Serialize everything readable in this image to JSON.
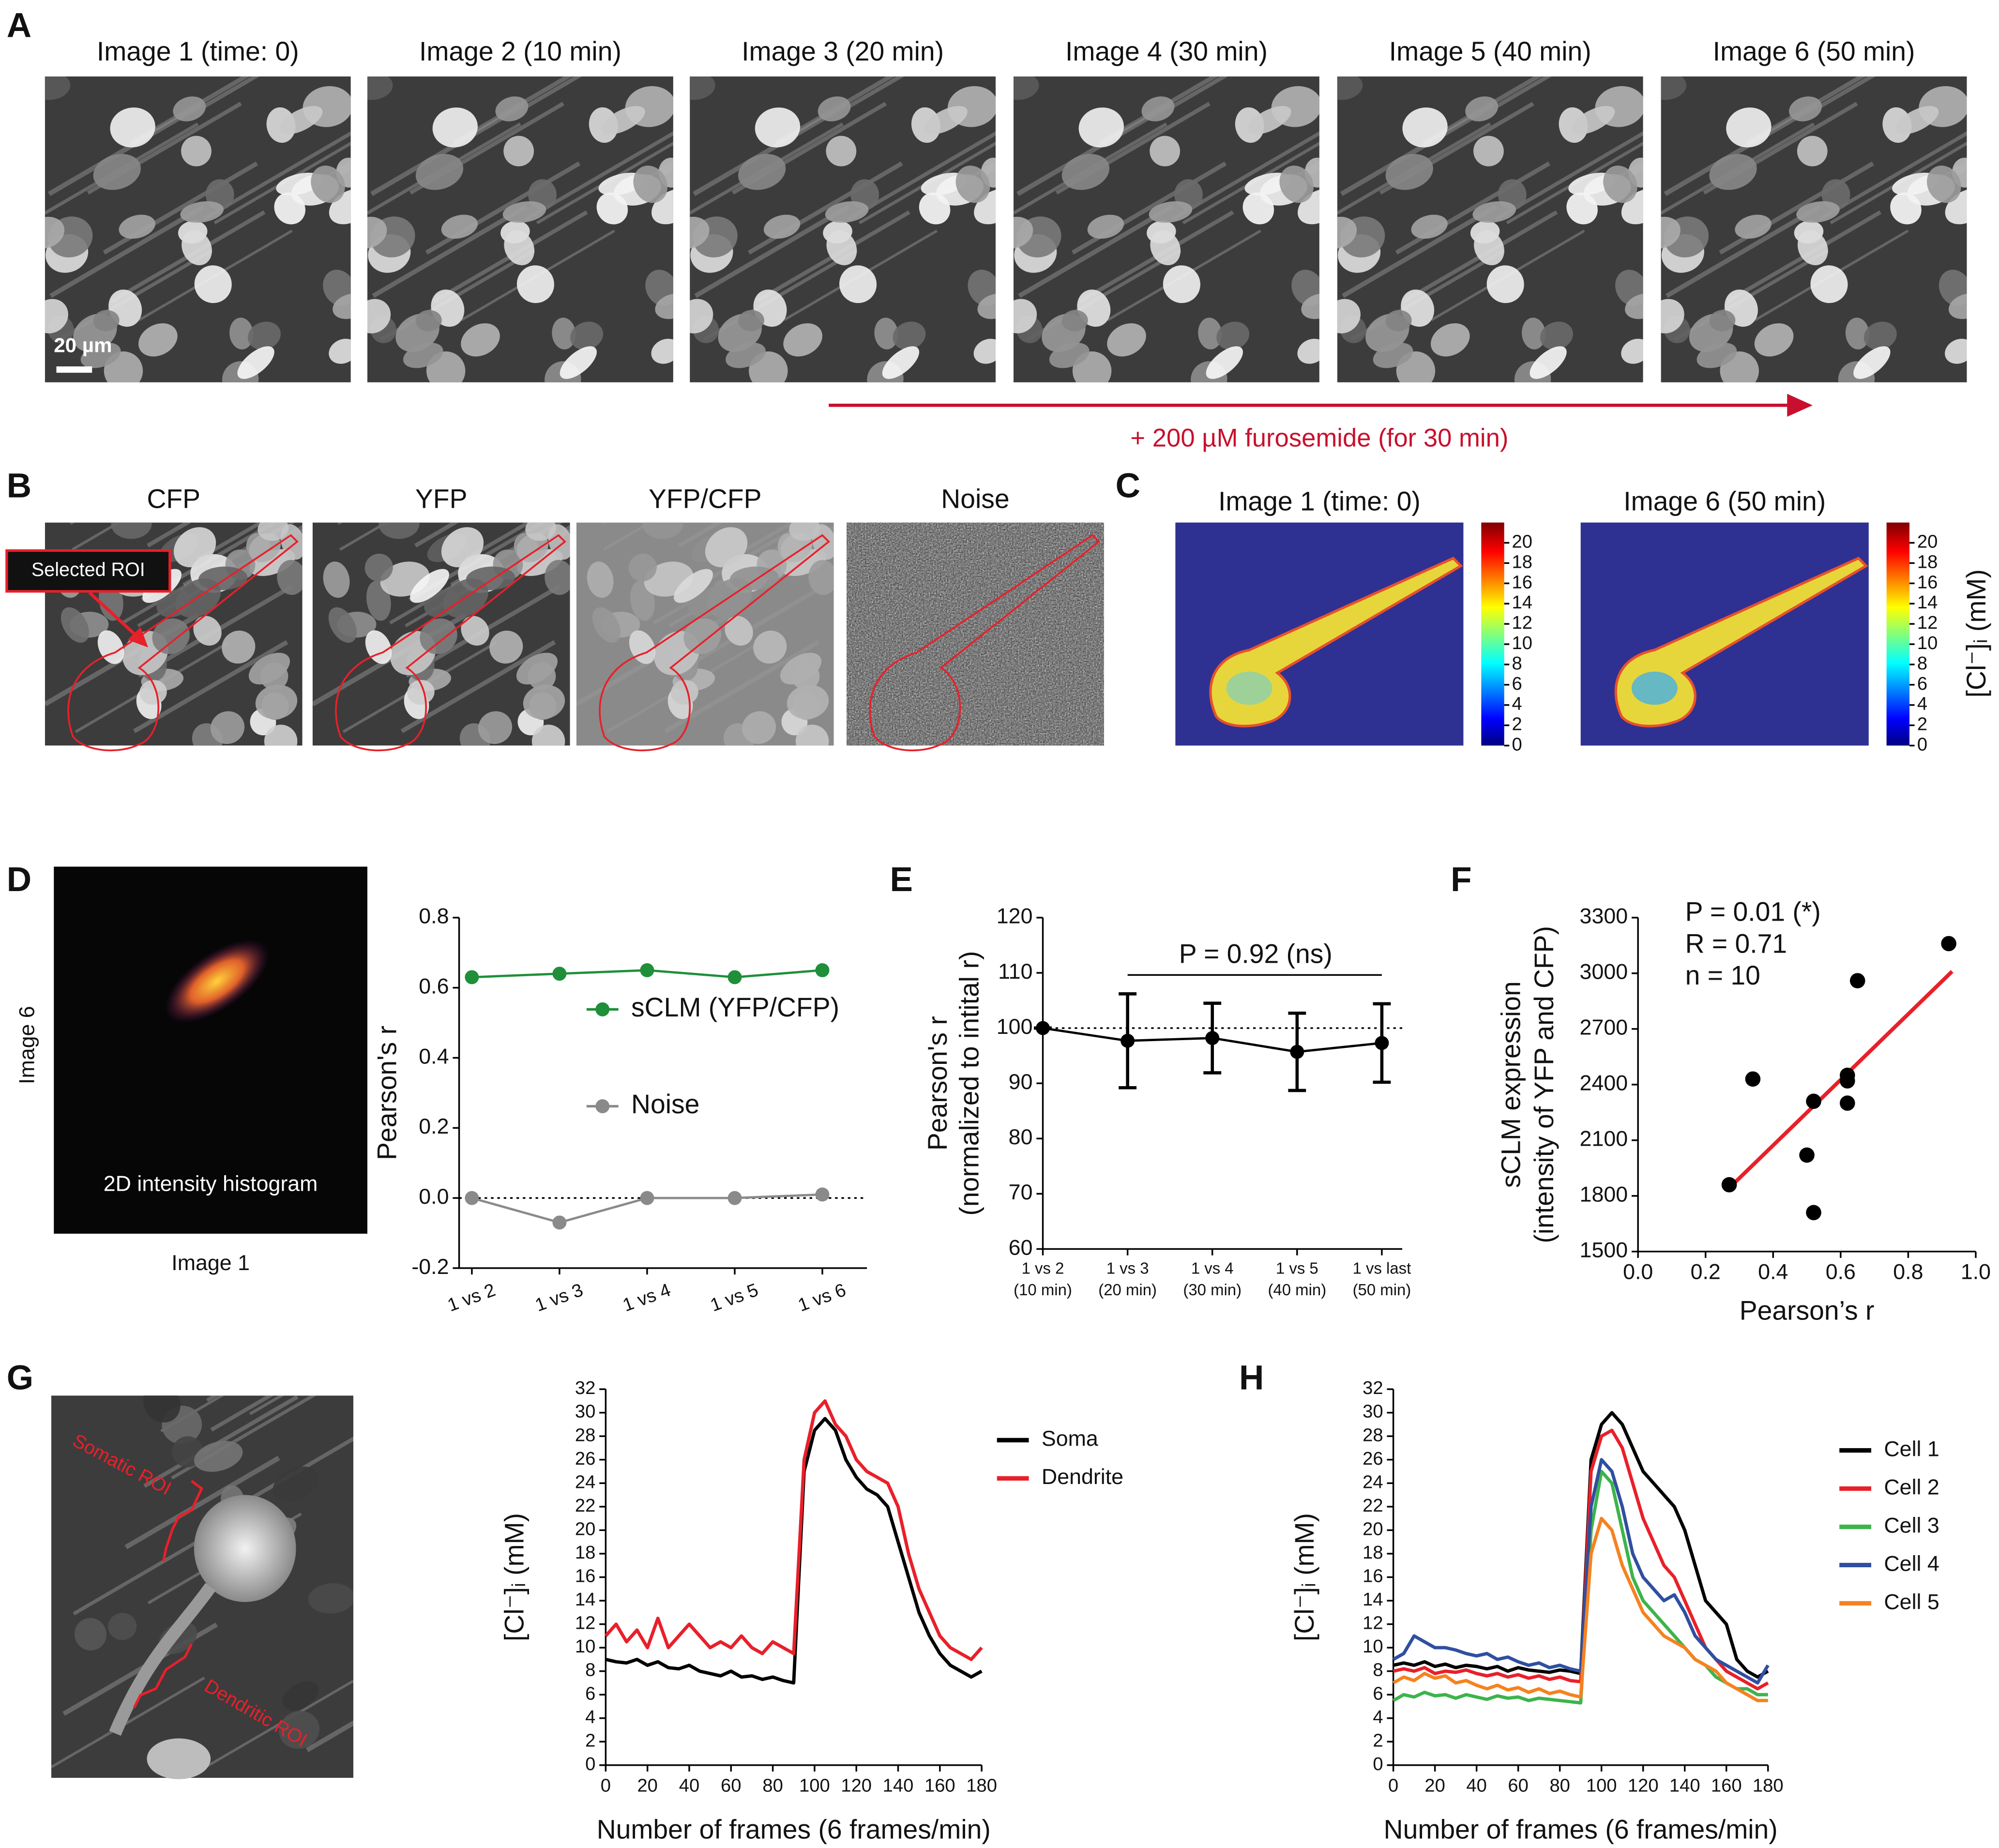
{
  "panels": [
    "A",
    "B",
    "C",
    "D",
    "E",
    "F",
    "G",
    "H"
  ],
  "panel_a": {
    "titles": [
      "Image 1 (time: 0)",
      "Image 2 (10 min)",
      "Image 3 (20 min)",
      "Image 4 (30 min)",
      "Image 5 (40 min)",
      "Image 6 (50 min)"
    ],
    "scale_bar": "20 µm",
    "treatment": "+ 200 µM furosemide (for 30 min)"
  },
  "panel_b": {
    "titles": [
      "CFP",
      "YFP",
      "YFP/CFP",
      "Noise"
    ],
    "roi_label": "Selected ROI"
  },
  "panel_c": {
    "titles": [
      "Image 1 (time: 0)",
      "Image 6 (50 min)"
    ],
    "colorbar": {
      "lim": [
        0,
        22
      ],
      "ticks": [
        0,
        2,
        4,
        6,
        8,
        10,
        12,
        14,
        16,
        18,
        20
      ],
      "label": "[Cl⁻]ᵢ (mM)"
    }
  },
  "panel_d": {
    "y_label": "Image 6",
    "x_label": "Image 1",
    "caption": "2D intensity histogram"
  },
  "panel_g": {
    "roi_labels": [
      "Somatic ROI",
      "Dendritic ROI"
    ]
  },
  "chart_data": [
    {
      "type": "line",
      "categories": [
        "1 vs 2",
        "1 vs 3",
        "1 vs 4",
        "1 vs 5",
        "1 vs 6"
      ],
      "series": [
        {
          "name": "sCLM (YFP/CFP)",
          "color": "#1f8f3a",
          "values": [
            0.63,
            0.64,
            0.65,
            0.63,
            0.65
          ]
        },
        {
          "name": "Noise",
          "color": "#8a8a8a",
          "values": [
            0,
            -0.07,
            0,
            0,
            0.01
          ]
        }
      ],
      "ylim": [
        -0.2,
        0.8
      ],
      "yticks": [
        -0.2,
        {
          "value": 0,
          "label": "0.0"
        },
        0.2,
        0.4,
        0.6,
        0.8
      ],
      "y_label": "Pearson's r",
      "hline": 0,
      "markers": true
    },
    {
      "type": "line",
      "categories": [
        [
          "1 vs 2",
          "(10 min)"
        ],
        [
          "1 vs 3",
          "(20 min)"
        ],
        [
          "1 vs 4",
          "(30 min)"
        ],
        [
          "1 vs 5",
          "(40 min)"
        ],
        [
          "1 vs last",
          "(50 min)"
        ]
      ],
      "values": [
        100,
        97.7,
        98.2,
        95.7,
        97.3
      ],
      "errors": [
        0,
        8.5,
        6.3,
        7,
        7.1
      ],
      "color": "#000000",
      "ylim": [
        60,
        120
      ],
      "yticks": [
        60,
        70,
        80,
        90,
        100,
        110,
        120
      ],
      "y_label": [
        "Pearson's r",
        "(normalized to intital r)"
      ],
      "hline": 100,
      "markers": true,
      "annotations": [
        "P = 0.92 (ns)"
      ]
    },
    {
      "type": "scatter",
      "x": [
        0.27,
        0.34,
        0.5,
        0.52,
        0.52,
        0.62,
        0.62,
        0.62,
        0.65,
        0.92
      ],
      "values": [
        1860,
        2430,
        2020,
        2310,
        1710,
        2450,
        2420,
        2300,
        2960,
        3160
      ],
      "color": "#000000",
      "xlim": [
        0,
        1
      ],
      "xticks": [
        {
          "value": 0,
          "label": "0.0"
        },
        0.2,
        0.4,
        0.6,
        0.8,
        {
          "value": 1,
          "label": "1.0"
        }
      ],
      "ylim": [
        1500,
        3300
      ],
      "yticks": [
        1500,
        1800,
        2100,
        2400,
        2700,
        3000,
        3300
      ],
      "x_label": "Pearson’s r",
      "y_label": [
        "sCLM expression",
        "(intensity of YFP and CFP)"
      ],
      "annotations": [
        "P = 0.01 (*)",
        "R = 0.71",
        "n = 10"
      ],
      "fit": {
        "x": [
          0.28,
          0.93
        ],
        "y": [
          1860,
          3010
        ],
        "color": "#e8202a"
      }
    },
    {
      "type": "line",
      "x": [
        0,
        5,
        10,
        15,
        20,
        25,
        30,
        35,
        40,
        45,
        50,
        55,
        60,
        65,
        70,
        75,
        80,
        85,
        90,
        95,
        100,
        105,
        110,
        115,
        120,
        125,
        130,
        135,
        140,
        145,
        150,
        155,
        160,
        165,
        170,
        175,
        180
      ],
      "series": [
        {
          "name": "Soma",
          "color": "#000000",
          "values": [
            9,
            8.8,
            8.7,
            9,
            8.5,
            8.8,
            8.3,
            8.2,
            8.5,
            8,
            7.8,
            7.6,
            8,
            7.5,
            7.6,
            7.3,
            7.5,
            7.2,
            7,
            25,
            28.5,
            29.5,
            28.5,
            26,
            24.5,
            23.5,
            23,
            22,
            19,
            16,
            13,
            11,
            9.5,
            8.5,
            8,
            7.5,
            8
          ]
        },
        {
          "name": "Dendrite",
          "color": "#e8202a",
          "values": [
            11,
            12,
            10.5,
            11.5,
            10,
            12.5,
            10,
            11,
            12,
            11,
            10,
            10.5,
            10,
            11,
            10,
            9.5,
            10.5,
            10,
            9.5,
            26,
            30,
            31,
            29,
            28,
            26,
            25,
            24.5,
            24,
            22,
            18,
            15,
            13,
            11,
            10,
            9.5,
            9,
            10
          ]
        }
      ],
      "xlim": [
        0,
        180
      ],
      "xticks": [
        0,
        20,
        40,
        60,
        80,
        100,
        120,
        140,
        160,
        180
      ],
      "ylim": [
        0,
        32
      ],
      "yticks": [
        0,
        2,
        4,
        6,
        8,
        10,
        12,
        14,
        16,
        18,
        20,
        22,
        24,
        26,
        28,
        30,
        32
      ],
      "x_label": "Number of frames (6 frames/min)",
      "y_label": "[Cl⁻]ᵢ (mM)"
    },
    {
      "type": "line",
      "x": [
        0,
        5,
        10,
        15,
        20,
        25,
        30,
        35,
        40,
        45,
        50,
        55,
        60,
        65,
        70,
        75,
        80,
        85,
        90,
        95,
        100,
        105,
        110,
        115,
        120,
        125,
        130,
        135,
        140,
        145,
        150,
        155,
        160,
        165,
        170,
        175,
        180
      ],
      "series": [
        {
          "name": "Cell 1",
          "color": "#000000",
          "values": [
            8.5,
            8.7,
            8.5,
            8.8,
            8.4,
            8.6,
            8.3,
            8.5,
            8.4,
            8.2,
            8.4,
            8,
            8.3,
            8.1,
            8,
            7.9,
            8.1,
            8,
            7.8,
            26,
            29,
            30,
            29,
            27,
            25,
            24,
            23,
            22,
            20,
            17,
            14,
            13,
            12,
            9,
            8,
            7.5,
            8
          ]
        },
        {
          "name": "Cell 2",
          "color": "#e8202a",
          "values": [
            8,
            8.2,
            8,
            8.3,
            7.8,
            8,
            7.9,
            8.1,
            7.8,
            7.6,
            7.8,
            7.5,
            7.7,
            7.4,
            7.6,
            7.3,
            7.5,
            7.2,
            7.1,
            25,
            28,
            28.5,
            27,
            24,
            21,
            19,
            17,
            16,
            14,
            12,
            10,
            9,
            8,
            7.5,
            7,
            6.5,
            7
          ]
        },
        {
          "name": "Cell 3",
          "color": "#3cb44b",
          "values": [
            5.5,
            6,
            5.8,
            6.2,
            5.9,
            6,
            5.7,
            6,
            5.8,
            5.6,
            5.9,
            5.7,
            5.8,
            5.5,
            5.7,
            5.6,
            5.5,
            5.4,
            5.3,
            20,
            25,
            24,
            20,
            16,
            14,
            13,
            12,
            11,
            10,
            9,
            8.5,
            7.5,
            7,
            6.5,
            6.5,
            6,
            6
          ]
        },
        {
          "name": "Cell 4",
          "color": "#2f4fa0",
          "values": [
            9,
            9.5,
            11,
            10.5,
            10,
            10,
            9.8,
            9.5,
            9.3,
            9.5,
            9,
            9.2,
            8.8,
            8.5,
            8.7,
            8.3,
            8.5,
            8.2,
            8,
            22,
            26,
            25,
            22,
            18,
            16,
            15,
            14,
            14.5,
            13,
            11,
            10,
            9,
            8.5,
            8,
            7.5,
            7,
            8.5
          ]
        },
        {
          "name": "Cell 5",
          "color": "#f58220",
          "values": [
            7,
            7.5,
            7.2,
            7.8,
            7.4,
            7.6,
            7,
            7.2,
            6.8,
            6.5,
            6.8,
            6.4,
            6.6,
            6.2,
            6.5,
            6.1,
            6.3,
            6,
            5.8,
            18,
            21,
            20,
            17,
            15,
            13,
            12,
            11,
            10.5,
            10,
            9,
            8.5,
            8,
            7,
            6.5,
            6,
            5.5,
            5.5
          ]
        }
      ],
      "xlim": [
        0,
        180
      ],
      "xticks": [
        0,
        20,
        40,
        60,
        80,
        100,
        120,
        140,
        160,
        180
      ],
      "ylim": [
        0,
        32
      ],
      "yticks": [
        0,
        2,
        4,
        6,
        8,
        10,
        12,
        14,
        16,
        18,
        20,
        22,
        24,
        26,
        28,
        30,
        32
      ],
      "x_label": "Number of frames (6 frames/min)",
      "y_label": "[Cl⁻]ᵢ (mM)"
    }
  ]
}
